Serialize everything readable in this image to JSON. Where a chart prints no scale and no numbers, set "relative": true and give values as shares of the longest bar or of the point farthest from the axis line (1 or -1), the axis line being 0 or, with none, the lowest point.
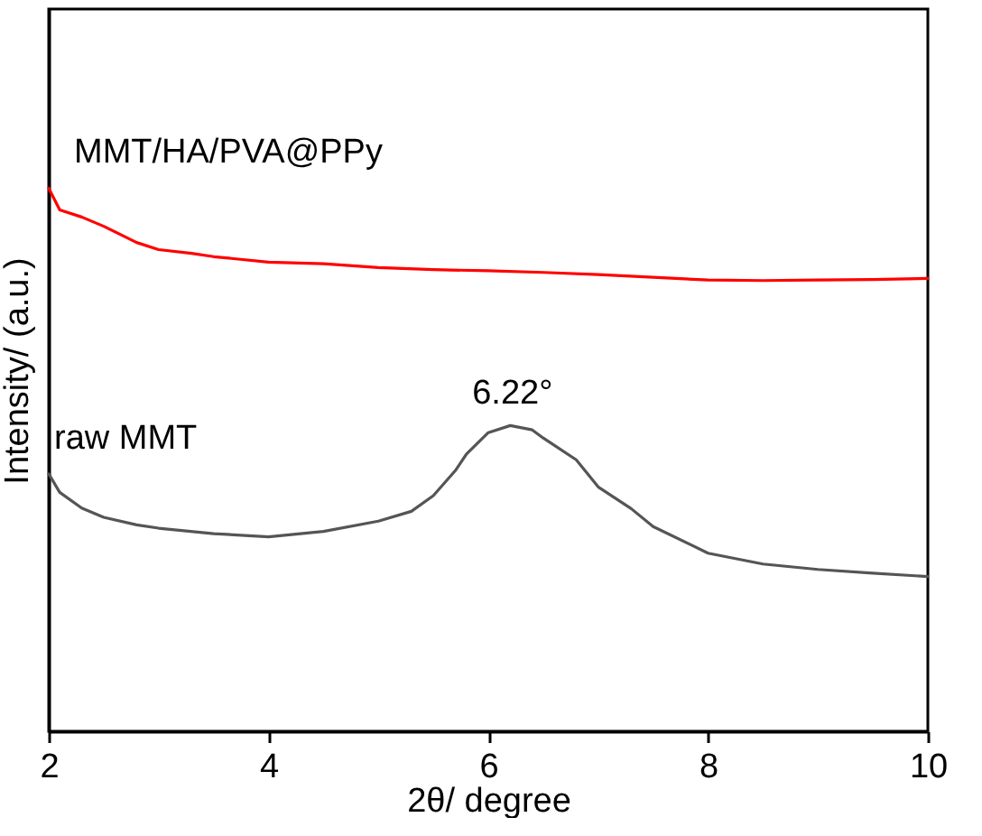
{
  "chart_data": {
    "type": "line",
    "relative": true,
    "xlabel": "2θ/ degree",
    "ylabel": "Intensity/ (a.u.)",
    "xlim": [
      2,
      10
    ],
    "xticks": [
      2,
      4,
      6,
      8,
      10
    ],
    "grid": false,
    "annotations": [
      {
        "text": "6.22°",
        "x": 6.22,
        "y": 0.563
      }
    ],
    "series": [
      {
        "name": "MMT/HA/PVA@PPy",
        "color": "#ff0000",
        "x": [
          2,
          2.1,
          2.3,
          2.5,
          2.8,
          3,
          3.3,
          3.5,
          4,
          4.5,
          5,
          5.5,
          6,
          6.5,
          7,
          7.5,
          8,
          8.5,
          9,
          9.5,
          10
        ],
        "values": [
          1.0,
          0.96,
          0.947,
          0.93,
          0.9,
          0.887,
          0.88,
          0.874,
          0.864,
          0.861,
          0.854,
          0.85,
          0.848,
          0.845,
          0.841,
          0.836,
          0.831,
          0.83,
          0.831,
          0.832,
          0.834
        ]
      },
      {
        "name": "raw MMT",
        "color": "#555555",
        "x": [
          2,
          2.1,
          2.3,
          2.5,
          2.8,
          3,
          3.5,
          4,
          4.5,
          5,
          5.3,
          5.5,
          5.7,
          5.8,
          6,
          6.2,
          6.4,
          6.5,
          6.8,
          7,
          7.3,
          7.5,
          8,
          8.5,
          9,
          9.5,
          10
        ],
        "values": [
          0.474,
          0.44,
          0.411,
          0.394,
          0.38,
          0.374,
          0.364,
          0.358,
          0.368,
          0.387,
          0.405,
          0.434,
          0.48,
          0.51,
          0.55,
          0.563,
          0.555,
          0.54,
          0.5,
          0.45,
          0.41,
          0.377,
          0.328,
          0.308,
          0.298,
          0.291,
          0.285
        ]
      }
    ]
  }
}
